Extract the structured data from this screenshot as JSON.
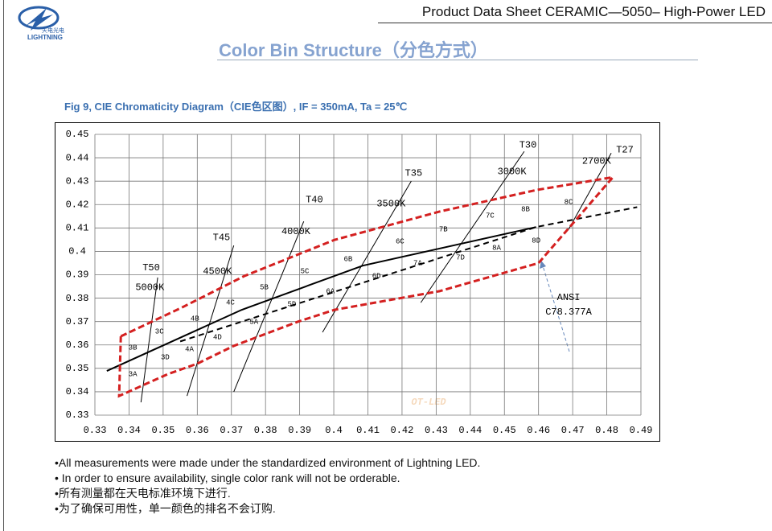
{
  "header": {
    "logo_text": "LIGHTNING",
    "logo_cn": "天电光电",
    "doc_title": "Product Data Sheet CERAMIC—5050– High-Power LED"
  },
  "section_title": "Color Bin Structure（分色方式）",
  "figure_caption": "Fig 9, CIE Chromaticity Diagram（CIE色区图）, IF = 350mA, Ta = 25℃",
  "chart_data": {
    "type": "line",
    "xlim": [
      0.33,
      0.49
    ],
    "ylim": [
      0.33,
      0.45
    ],
    "xticks": [
      0.33,
      0.34,
      0.35,
      0.36,
      0.37,
      0.38,
      0.39,
      0.4,
      0.41,
      0.42,
      0.43,
      0.44,
      0.45,
      0.46,
      0.47,
      0.48,
      0.49
    ],
    "yticks": [
      0.33,
      0.34,
      0.35,
      0.36,
      0.37,
      0.38,
      0.39,
      0.4,
      0.41,
      0.42,
      0.43,
      0.44,
      0.45
    ],
    "grid": true,
    "series": [
      {
        "color": "#000000",
        "dash": false,
        "x": [
          0.3335,
          0.373,
          0.4085,
          0.4593
        ],
        "values": [
          0.3489,
          0.375,
          0.3939,
          0.4104
        ]
      },
      {
        "color": "#000000",
        "dash": true,
        "x": [
          0.355,
          0.4593,
          0.4889
        ],
        "values": [
          0.3615,
          0.4104,
          0.4189
        ]
      },
      {
        "color": "#d42020",
        "dash": true,
        "x": [
          0.3376,
          0.3555,
          0.3737,
          0.4002,
          0.431,
          0.4593,
          0.4818,
          0.46,
          0.431,
          0.4002,
          0.3896,
          0.3707,
          0.36,
          0.3513,
          0.3371,
          0.3376
        ],
        "values": [
          0.3637,
          0.376,
          0.3894,
          0.4049,
          0.417,
          0.4262,
          0.4317,
          0.395,
          0.383,
          0.375,
          0.37,
          0.3596,
          0.352,
          0.3475,
          0.3382,
          0.3637
        ]
      }
    ],
    "cct_lines": [
      {
        "name": "T50",
        "cct": "5000K",
        "x": [
          0.3435,
          0.3484
        ],
        "values": [
          0.3355,
          0.3888
        ],
        "label_x": 0.3465,
        "label_y": 0.3929,
        "cct_x": 0.3461,
        "cct_y": 0.3846
      },
      {
        "name": "T45",
        "cct": "4500K",
        "x": [
          0.357,
          0.3707
        ],
        "values": [
          0.3382,
          0.4025
        ],
        "label_x": 0.3671,
        "label_y": 0.4059,
        "cct_x": 0.3659,
        "cct_y": 0.3915
      },
      {
        "name": "T40",
        "cct": "4000K",
        "x": [
          0.3707,
          0.3912
        ],
        "values": [
          0.34,
          0.4128
        ],
        "label_x": 0.3943,
        "label_y": 0.4221,
        "cct_x": 0.3889,
        "cct_y": 0.4084
      },
      {
        "name": "T35",
        "cct": "3500K",
        "x": [
          0.3967,
          0.4227
        ],
        "values": [
          0.3654,
          0.43
        ],
        "label_x": 0.4234,
        "label_y": 0.4334,
        "cct_x": 0.4168,
        "cct_y": 0.4204
      },
      {
        "name": "T30",
        "cct": "3000K",
        "x": [
          0.4255,
          0.4558
        ],
        "values": [
          0.3781,
          0.4427
        ],
        "label_x": 0.4569,
        "label_y": 0.4455,
        "cct_x": 0.4522,
        "cct_y": 0.4341
      },
      {
        "name": "T27",
        "cct": "2700K",
        "x": [
          0.4688,
          0.4813
        ],
        "values": [
          0.4094,
          0.442
        ],
        "label_x": 0.4853,
        "label_y": 0.4434,
        "cct_x": 0.477,
        "cct_y": 0.4386
      }
    ],
    "bins": [
      {
        "label": "3A",
        "x": 0.3411,
        "y": 0.3475
      },
      {
        "label": "3B",
        "x": 0.3411,
        "y": 0.3589
      },
      {
        "label": "3C",
        "x": 0.3489,
        "y": 0.3657
      },
      {
        "label": "3D",
        "x": 0.3506,
        "y": 0.3547
      },
      {
        "label": "4A",
        "x": 0.3577,
        "y": 0.3582
      },
      {
        "label": "4B",
        "x": 0.3593,
        "y": 0.3712
      },
      {
        "label": "4C",
        "x": 0.3697,
        "y": 0.3781
      },
      {
        "label": "4D",
        "x": 0.3659,
        "y": 0.3633
      },
      {
        "label": "5A",
        "x": 0.3766,
        "y": 0.3699
      },
      {
        "label": "5B",
        "x": 0.3796,
        "y": 0.3846
      },
      {
        "label": "5C",
        "x": 0.3915,
        "y": 0.3915
      },
      {
        "label": "5D",
        "x": 0.3877,
        "y": 0.3774
      },
      {
        "label": "6A",
        "x": 0.399,
        "y": 0.3829
      },
      {
        "label": "6B",
        "x": 0.4042,
        "y": 0.3967
      },
      {
        "label": "6C",
        "x": 0.4194,
        "y": 0.4042
      },
      {
        "label": "6D",
        "x": 0.4125,
        "y": 0.3895
      },
      {
        "label": "7A",
        "x": 0.4246,
        "y": 0.3949
      },
      {
        "label": "7B",
        "x": 0.4321,
        "y": 0.4094
      },
      {
        "label": "7C",
        "x": 0.4458,
        "y": 0.4152
      },
      {
        "label": "7D",
        "x": 0.4371,
        "y": 0.3974
      },
      {
        "label": "8A",
        "x": 0.4477,
        "y": 0.4015
      },
      {
        "label": "8B",
        "x": 0.4562,
        "y": 0.418
      },
      {
        "label": "8C",
        "x": 0.4688,
        "y": 0.4211
      },
      {
        "label": "8D",
        "x": 0.4593,
        "y": 0.4046
      }
    ],
    "ansi_label": [
      "ANSI",
      "C78.377A"
    ],
    "ansi_x": 0.4688,
    "ansi_y": [
      0.3802,
      0.374
    ],
    "watermark": "OT-LED"
  },
  "notes": [
    "•All measurements were made under the standardized environment of Lightning LED.",
    "• In order to ensure availability, single color rank will not be orderable.",
    "•所有测量都在天电标准环境下进行.",
    "•为了确保可用性，单一颜色的排名不会订购."
  ]
}
